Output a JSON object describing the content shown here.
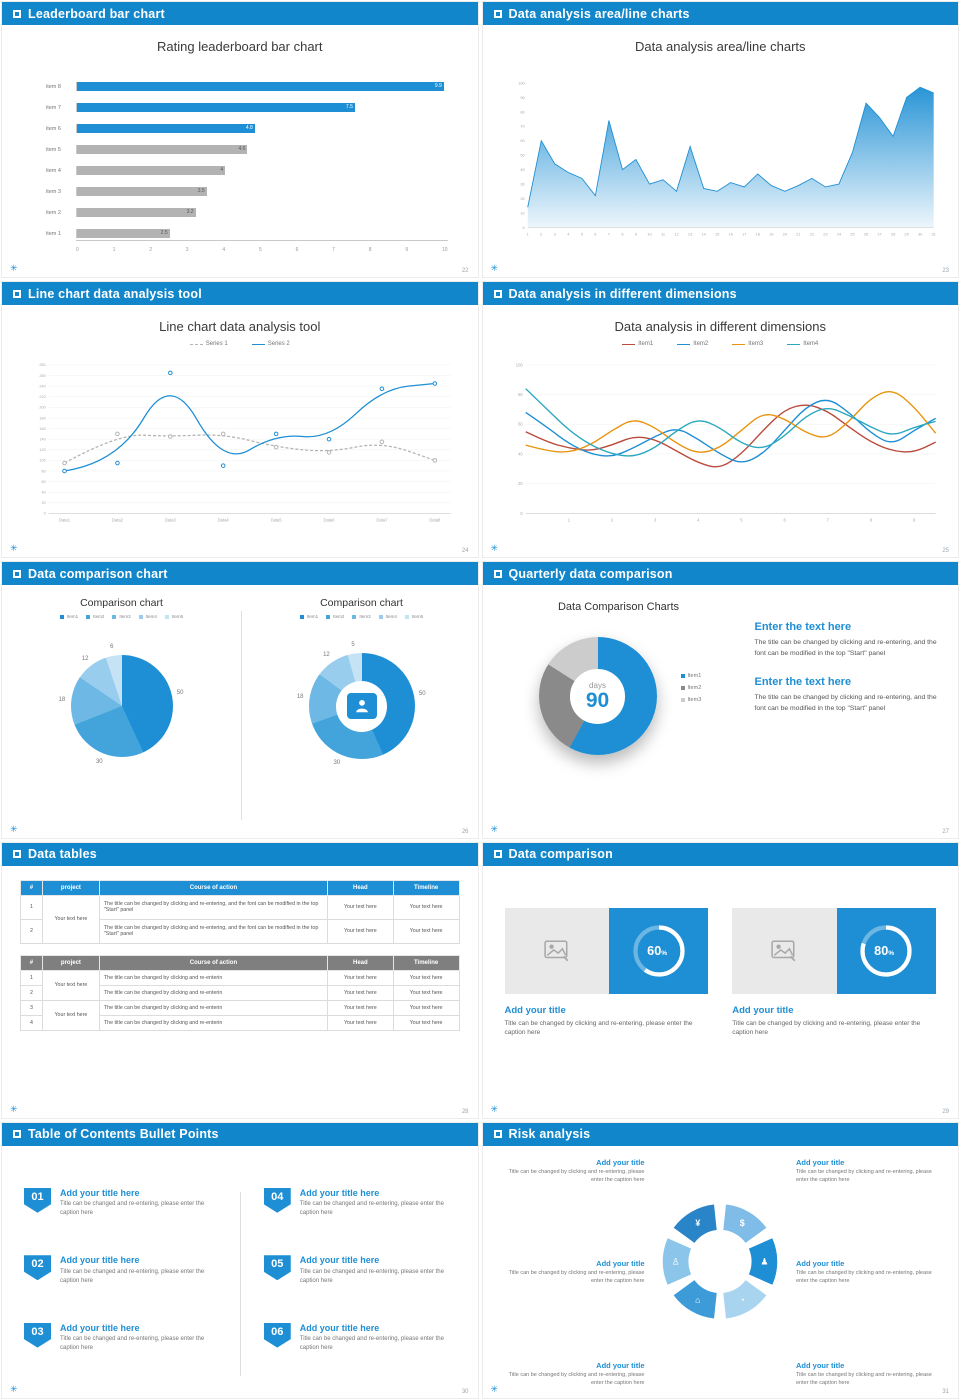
{
  "colors": {
    "header_blue": "#1186cb",
    "accent": "#1e8fd4",
    "bar_gray": "#b3b3b3",
    "text_dark": "#3a3a3a",
    "text_gray": "#777777",
    "pie_blues": [
      "#1e8fd4",
      "#42a4db",
      "#6db8e5",
      "#99cdee",
      "#c6e3f6"
    ],
    "donut3": [
      "#1e8fd4",
      "#8a8a8a",
      "#cccccc"
    ],
    "pinwheel": [
      "#7fbde8",
      "#1e8fd4",
      "#a9d4f0",
      "#3d9bd8",
      "#8cc5ea",
      "#2a85c8"
    ]
  },
  "footer": {
    "logo_glyph": "✳"
  },
  "slides": {
    "bar": {
      "header": "Leaderboard bar chart",
      "page": "22",
      "title": "Rating leaderboard bar chart",
      "chart_data": {
        "type": "bar",
        "categories": [
          "item 8",
          "item 7",
          "item 6",
          "item 5",
          "item 4",
          "item 3",
          "item 2",
          "item 1"
        ],
        "values": [
          9.9,
          7.5,
          4.8,
          4.6,
          4,
          3.5,
          3.2,
          2.5
        ],
        "highlight_count": 3,
        "xlim": [
          0,
          10
        ],
        "xticks": [
          0,
          1,
          2,
          3,
          4,
          5,
          6,
          7,
          8,
          9,
          10
        ]
      }
    },
    "area": {
      "header": "Data analysis area/line charts",
      "page": "23",
      "title": "Data analysis area/line charts",
      "chart_data": {
        "type": "area",
        "x_start": 1,
        "values": [
          14,
          60,
          44,
          38,
          34,
          22,
          74,
          40,
          47,
          30,
          33,
          25,
          56,
          27,
          25,
          31,
          28,
          37,
          29,
          25,
          29,
          34,
          28,
          30,
          52,
          86,
          76,
          63,
          90,
          97,
          93
        ],
        "ylim": [
          0,
          100
        ],
        "ytick_step": 10
      }
    },
    "line": {
      "header": "Line chart data analysis tool",
      "page": "24",
      "title": "Line chart data analysis tool",
      "chart_data": {
        "type": "line",
        "categories": [
          "Data1",
          "Data2",
          "Data3",
          "Data4",
          "Data5",
          "Data6",
          "Data7",
          "Data8"
        ],
        "series": [
          {
            "name": "Series 1",
            "color": "#b3b3b3",
            "dash": true,
            "values": [
              95,
              150,
              145,
              150,
              125,
              115,
              135,
              100
            ]
          },
          {
            "name": "Series 2",
            "color": "#1e8fd4",
            "dash": false,
            "values": [
              80,
              95,
              265,
              90,
              150,
              140,
              235,
              245
            ]
          }
        ],
        "ylim": [
          0,
          280
        ],
        "ytick_step": 20
      }
    },
    "dims": {
      "header": "Data analysis in different dimensions",
      "page": "25",
      "title": "Data analysis in different dimensions",
      "chart_data": {
        "type": "line",
        "x_max": 9.5,
        "xticks": [
          1,
          2,
          3,
          4,
          5,
          6,
          7,
          8,
          9
        ],
        "ylim": [
          0,
          100
        ],
        "yticks": [
          0,
          20,
          40,
          60,
          80,
          100
        ],
        "series": [
          {
            "name": "Item1",
            "color": "#b94a3c",
            "values": [
              55,
              48,
              44,
              42,
              46,
              52,
              50,
              42,
              34,
              30,
              40,
              56,
              70,
              74,
              69,
              58,
              48,
              42,
              41,
              48
            ]
          },
          {
            "name": "Item2",
            "color": "#1e8fd4",
            "values": [
              68,
              58,
              47,
              40,
              38,
              44,
              52,
              58,
              50,
              40,
              33,
              40,
              56,
              72,
              78,
              68,
              54,
              46,
              56,
              64
            ]
          },
          {
            "name": "Item3",
            "color": "#e8930c",
            "values": [
              46,
              42,
              41,
              46,
              56,
              64,
              58,
              47,
              40,
              44,
              56,
              68,
              64,
              54,
              50,
              62,
              78,
              84,
              72,
              54
            ]
          },
          {
            "name": "Item4",
            "color": "#2aa8c0",
            "values": [
              84,
              70,
              56,
              46,
              40,
              38,
              44,
              56,
              64,
              58,
              47,
              43,
              52,
              66,
              72,
              66,
              58,
              52,
              58,
              62
            ]
          }
        ]
      }
    },
    "pies": {
      "header": "Data comparison chart",
      "page": "26",
      "left": {
        "title": "Comparison chart",
        "legend": [
          "Item1",
          "Item2",
          "Item3",
          "Item4",
          "Item5"
        ],
        "chart_data": {
          "type": "pie",
          "values": [
            50,
            30,
            18,
            12,
            6
          ],
          "labels": [
            "50",
            "30",
            "18",
            "12",
            "6"
          ]
        }
      },
      "right": {
        "title": "Comparison chart",
        "legend": [
          "Item1",
          "Item2",
          "Item3",
          "Item4",
          "Item5"
        ],
        "chart_data": {
          "type": "donut",
          "values": [
            50,
            30,
            18,
            12,
            5
          ],
          "labels": [
            "50",
            "30",
            "18",
            "12",
            "5"
          ]
        }
      }
    },
    "quarterly": {
      "header": "Quarterly data comparison",
      "page": "27",
      "title": "Data Comparison Charts",
      "center_top": "days",
      "center_big": "90",
      "chart_data": {
        "type": "donut",
        "values": [
          58,
          26,
          16
        ],
        "labels": [
          "Item1",
          "Item2",
          "Item3"
        ]
      },
      "blocks": [
        {
          "title": "Enter the text here",
          "body": "The title can be changed by clicking and re-entering, and the font can be modified in the top \"Start\" panel"
        },
        {
          "title": "Enter the text here",
          "body": "The title can be changed by clicking and re-entering, and the font can be modified in the top \"Start\" panel"
        }
      ]
    },
    "tables": {
      "header": "Data tables",
      "page": "28",
      "table1": {
        "head": [
          "#",
          "project",
          "Course of action",
          "Head",
          "Timeline"
        ],
        "rows": [
          [
            "1",
            "Your text here",
            "The title can be changed by clicking and re-entering, and the font can be modified in the top \"Start\" panel",
            "Your text here",
            "Your text here"
          ],
          [
            "2",
            "",
            "The title can be changed by clicking and re-entering, and the font can be modified in the top \"Start\" panel",
            "Your text here",
            "Your text here"
          ]
        ]
      },
      "table2": {
        "head": [
          "#",
          "project",
          "Course of action",
          "Head",
          "Timeline"
        ],
        "head_bg": "#7f7f7f",
        "rows": [
          [
            "1",
            "Your text here",
            "The title can be changed by clicking and re-enterin",
            "Your text here",
            "Your text here"
          ],
          [
            "2",
            "",
            "The title can be changed by clicking and re-enterin",
            "Your text here",
            "Your text here"
          ],
          [
            "3",
            "Your text here",
            "The title can be changed by clicking and re-enterin",
            "Your text here",
            "Your text here"
          ],
          [
            "4",
            "",
            "The title can be changed by clicking and re-enterin",
            "Your text here",
            "Your text here"
          ]
        ]
      }
    },
    "compare": {
      "header": "Data comparison",
      "page": "29",
      "cards": [
        {
          "pct": 60,
          "title": "Add your title",
          "caption": "Title can be changed by clicking and re-entering, please enter the caption here"
        },
        {
          "pct": 80,
          "title": "Add your title",
          "caption": "Title can be changed by clicking and re-entering, please enter the caption here"
        }
      ]
    },
    "toc": {
      "header": "Table of Contents Bullet Points",
      "page": "30",
      "items": [
        {
          "num": "01",
          "title": "Add your title here",
          "caption": "Title can be changed and re-entering, please enter the caption here"
        },
        {
          "num": "02",
          "title": "Add your title here",
          "caption": "Title can be changed and re-entering, please enter the caption here"
        },
        {
          "num": "03",
          "title": "Add your title here",
          "caption": "Title can be changed and re-entering, please enter the caption here"
        },
        {
          "num": "04",
          "title": "Add your title here",
          "caption": "Title can be changed and re-entering, please enter the caption here"
        },
        {
          "num": "05",
          "title": "Add your title here",
          "caption": "Title can be changed and re-entering, please enter the caption here"
        },
        {
          "num": "06",
          "title": "Add your title here",
          "caption": "Title can be changed and re-entering, please enter the caption here"
        }
      ]
    },
    "risk": {
      "header": "Risk analysis",
      "page": "31",
      "left": [
        {
          "title": "Add your title",
          "caption": "Title can be changed by clicking and re-entering, please enter the caption here"
        },
        {
          "title": "Add your title",
          "caption": "Title can be changed by clicking and re-entering, please enter the caption here"
        },
        {
          "title": "Add your title",
          "caption": "Title can be changed by clicking and re-entering, please enter the caption here"
        }
      ],
      "right": [
        {
          "title": "Add your title",
          "caption": "Title can be changed by clicking and re-entering, please enter the caption here"
        },
        {
          "title": "Add your title",
          "caption": "Title can be changed by clicking and re-entering, please enter the caption here"
        },
        {
          "title": "Add your title",
          "caption": "Title can be changed by clicking and re-entering, please enter the caption here"
        }
      ],
      "icons": [
        {
          "name": "coins-icon",
          "glyph": "$"
        },
        {
          "name": "user-group-icon",
          "glyph": "♟"
        },
        {
          "name": "pie-chart-icon",
          "glyph": "◔"
        },
        {
          "name": "bank-icon",
          "glyph": "⌂"
        },
        {
          "name": "user-icon",
          "glyph": "♙"
        },
        {
          "name": "money-bag-icon",
          "glyph": "¥"
        }
      ]
    }
  }
}
